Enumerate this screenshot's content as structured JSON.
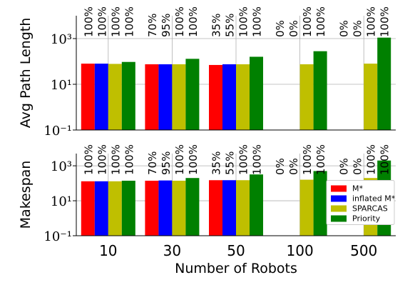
{
  "chart_data": [
    {
      "type": "bar",
      "ylabel": "Avg Path Length",
      "yscale": "log",
      "grid": true,
      "categories": [
        "10",
        "30",
        "50",
        "100",
        "500"
      ],
      "ylim": [
        0.1,
        10000
      ],
      "yticks": [
        {
          "value": 0.1,
          "label": "10⁻¹"
        },
        {
          "value": 10,
          "label": "10¹"
        },
        {
          "value": 1000,
          "label": "10³"
        }
      ],
      "series": [
        {
          "name": "M*",
          "color": "#ff0000",
          "values": [
            80,
            75,
            70,
            null,
            null
          ],
          "success": [
            100,
            70,
            35,
            0,
            0
          ],
          "success_labels": [
            "100%",
            "70%",
            "35%",
            "0%",
            "0%"
          ]
        },
        {
          "name": "inflated M*",
          "color": "#0000ff",
          "values": [
            80,
            75,
            75,
            null,
            null
          ],
          "success": [
            100,
            95,
            55,
            0,
            0
          ],
          "success_labels": [
            "100%",
            "95%",
            "55%",
            "0%",
            "0%"
          ]
        },
        {
          "name": "SPARCAS",
          "color": "#bfbf00",
          "values": [
            78,
            75,
            75,
            75,
            80
          ],
          "success": [
            100,
            100,
            100,
            100,
            100
          ],
          "success_labels": [
            "100%",
            "100%",
            "100%",
            "100%",
            "100%"
          ]
        },
        {
          "name": "Priority",
          "color": "#008000",
          "values": [
            95,
            130,
            160,
            280,
            1100
          ],
          "success": [
            100,
            100,
            100,
            100,
            100
          ],
          "success_labels": [
            "100%",
            "100%",
            "100%",
            "100%",
            "100%"
          ]
        }
      ]
    },
    {
      "type": "bar",
      "ylabel": "Makespan",
      "xlabel": "Number of Robots",
      "yscale": "log",
      "grid": true,
      "legend": "right",
      "categories": [
        "10",
        "30",
        "50",
        "100",
        "500"
      ],
      "ylim": [
        0.1,
        5000
      ],
      "yticks": [
        {
          "value": 0.1,
          "label": "10⁻¹"
        },
        {
          "value": 10,
          "label": "10¹"
        },
        {
          "value": 1000,
          "label": "10³"
        }
      ],
      "series": [
        {
          "name": "M*",
          "color": "#ff0000",
          "values": [
            130,
            140,
            150,
            null,
            null
          ],
          "success": [
            100,
            70,
            35,
            0,
            0
          ],
          "success_labels": [
            "100%",
            "70%",
            "35%",
            "0%",
            "0%"
          ]
        },
        {
          "name": "inflated M*",
          "color": "#0000ff",
          "values": [
            130,
            145,
            150,
            null,
            null
          ],
          "success": [
            100,
            95,
            55,
            0,
            0
          ],
          "success_labels": [
            "100%",
            "95%",
            "55%",
            "0%",
            "0%"
          ]
        },
        {
          "name": "SPARCAS",
          "color": "#bfbf00",
          "values": [
            130,
            140,
            150,
            160,
            200
          ],
          "success": [
            100,
            100,
            100,
            100,
            100
          ],
          "success_labels": [
            "100%",
            "100%",
            "100%",
            "100%",
            "100%"
          ]
        },
        {
          "name": "Priority",
          "color": "#008000",
          "values": [
            140,
            200,
            320,
            500,
            2000
          ],
          "success": [
            100,
            100,
            100,
            100,
            100
          ],
          "success_labels": [
            "100%",
            "100%",
            "100%",
            "100%",
            "100%"
          ]
        }
      ]
    }
  ]
}
